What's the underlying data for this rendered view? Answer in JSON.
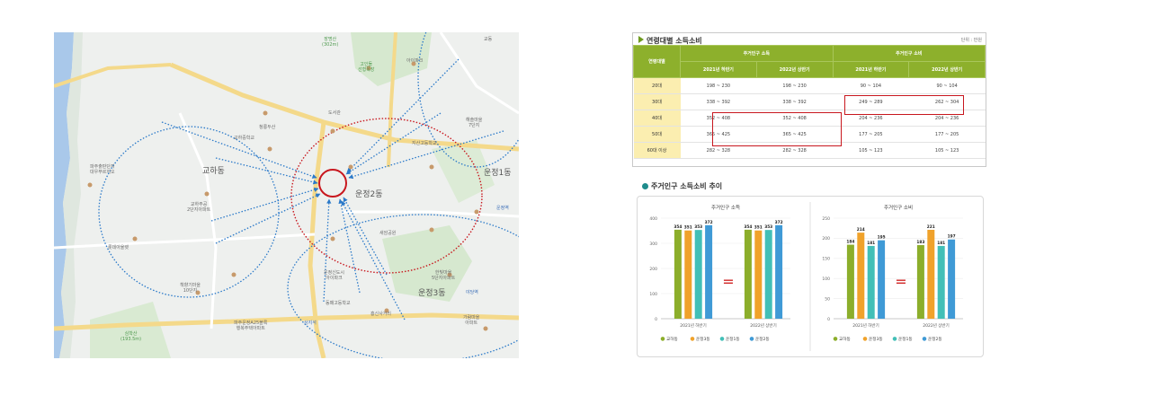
{
  "map": {
    "labels": {
      "jangmyeongsan": "장명산\n(302m)",
      "gyeongdang": "교동",
      "goeunsan": "고인돌\n선형목장",
      "iparkan": "아이파크",
      "cheongrae": "청롱두산",
      "gyeha": "교하동",
      "gyeha_apt": "교하주공\n2단지아파트",
      "gyeha_jugong": "파주출판단지\n대우푸르지오",
      "baengnyeon": "롯데아울렛",
      "simaksan": "심학산\n(193.5m)",
      "unjeong2": "운정2동",
      "unjeong3": "운정3동",
      "unjeong1": "운정1동",
      "jisan": "지산고등학교",
      "hanbit": "한빛마을\n5단지아파트",
      "unjeongyeok": "운정역",
      "yadangyeok": "야당역",
      "sanggwang": "상지석",
      "gyeongui": "경의선",
      "doseo": "도서관",
      "eyeball": "운정신도시\n아이파크",
      "haebit": "해솔마을\n7단지",
      "gajeong": "가람마을\n아파트",
      "seongwon": "새암공원",
      "dongpae": "동패고등학교",
      "gyoha_c": "교하중학교",
      "heuk": "흥신사거리",
      "paju_unjeong": "파주운정A25블록\n행복주택아파트",
      "gyeha_3": "책향기마을\n10단지"
    }
  },
  "table": {
    "title": "연령대별 소득소비",
    "unit": "단위 : 만원",
    "header_age": "연령대별",
    "group_income": "주거인구 소득",
    "group_spend": "주거인구 소비",
    "periods": [
      "2021년 하반기",
      "2022년 상반기",
      "2021년 하반기",
      "2022년 상반기"
    ],
    "rows": [
      {
        "age": "20대",
        "v": [
          "198 ~ 230",
          "198 ~ 230",
          "90 ~ 104",
          "90 ~ 104"
        ]
      },
      {
        "age": "30대",
        "v": [
          "338 ~ 392",
          "338 ~ 392",
          "249 ~ 289",
          "262 ~ 304"
        ]
      },
      {
        "age": "40대",
        "v": [
          "352 ~ 408",
          "352 ~ 408",
          "204 ~ 236",
          "204 ~ 236"
        ]
      },
      {
        "age": "50대",
        "v": [
          "365 ~ 425",
          "365 ~ 425",
          "177 ~ 205",
          "177 ~ 205"
        ]
      },
      {
        "age": "60대 이상",
        "v": [
          "282 ~ 328",
          "282 ~ 328",
          "105 ~ 123",
          "105 ~ 123"
        ]
      }
    ]
  },
  "trend": {
    "title": "주거인구 소득소비 추이"
  },
  "chart_data": [
    {
      "type": "bar",
      "title": "주거인구 소득",
      "categories": [
        "2021년 하반기",
        "2022년 상반기"
      ],
      "ylim": [
        0,
        400
      ],
      "yticks": [
        0,
        100,
        200,
        300,
        400
      ],
      "series": [
        {
          "name": "교하동",
          "values": [
            354,
            354
          ],
          "color": "#8cae2b"
        },
        {
          "name": "운정3동",
          "values": [
            351,
            351
          ],
          "color": "#f0a22b"
        },
        {
          "name": "운정1동",
          "values": [
            353,
            353
          ],
          "color": "#42bfb7"
        },
        {
          "name": "운정2동",
          "values": [
            372,
            372
          ],
          "color": "#3f9ad6"
        }
      ],
      "equal_sign": "="
    },
    {
      "type": "bar",
      "title": "주거인구 소비",
      "categories": [
        "2021년 하반기",
        "2022년 상반기"
      ],
      "ylim": [
        0,
        250
      ],
      "yticks": [
        0,
        50,
        100,
        150,
        200,
        250
      ],
      "series": [
        {
          "name": "교하동",
          "values": [
            184,
            183
          ],
          "color": "#8cae2b"
        },
        {
          "name": "운정3동",
          "values": [
            214,
            221
          ],
          "color": "#f0a22b"
        },
        {
          "name": "운정1동",
          "values": [
            181,
            181
          ],
          "color": "#42bfb7"
        },
        {
          "name": "운정2동",
          "values": [
            195,
            197
          ],
          "color": "#3f9ad6"
        }
      ],
      "equal_sign": "="
    }
  ],
  "colors": {
    "table_header": "#8db02c",
    "age_cell": "#fbeeb0",
    "highlight": "#c8171e",
    "arrow": "#2a79c9"
  }
}
